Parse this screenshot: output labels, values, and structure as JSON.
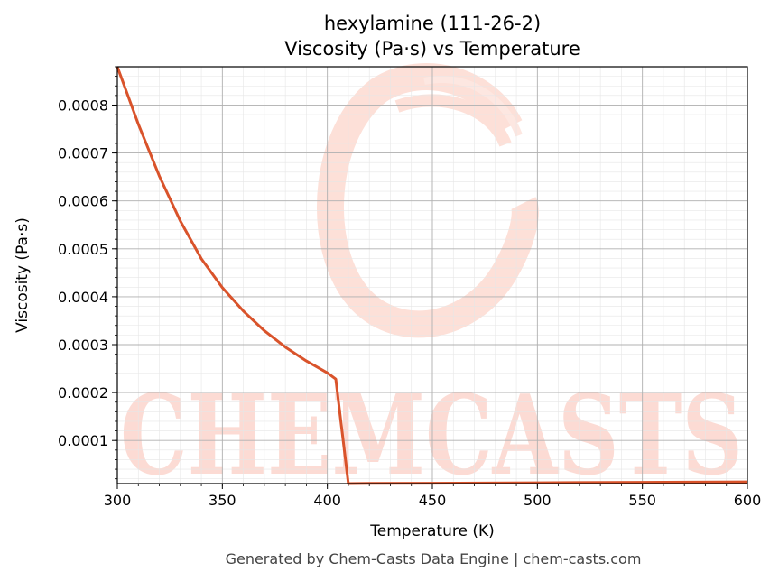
{
  "chart_data": {
    "type": "line",
    "title": "hexylamine (111-26-2)",
    "subtitle": "Viscosity (Pa·s) vs Temperature",
    "xlabel": "Temperature (K)",
    "ylabel": "Viscosity (Pa·s)",
    "xlim": [
      300,
      600
    ],
    "ylim": [
      1e-05,
      0.00088
    ],
    "x_ticks": [
      300,
      350,
      400,
      450,
      500,
      550,
      600
    ],
    "y_ticks": [
      0.0001,
      0.0002,
      0.0003,
      0.0004,
      0.0005,
      0.0006,
      0.0007,
      0.0008
    ],
    "x_tick_labels": [
      "300",
      "350",
      "400",
      "450",
      "500",
      "550",
      "600"
    ],
    "y_tick_labels": [
      "0.0001",
      "0.0002",
      "0.0003",
      "0.0004",
      "0.0005",
      "0.0006",
      "0.0007",
      "0.0008"
    ],
    "grid": true,
    "legend": "none",
    "series": [
      {
        "color": "#d9532b",
        "x": [
          300,
          310,
          320,
          330,
          340,
          350,
          360,
          370,
          380,
          390,
          400,
          404,
          410,
          420,
          450,
          500,
          550,
          600
        ],
        "y": [
          0.00088,
          0.00076,
          0.000652,
          0.000558,
          0.000479,
          0.000419,
          0.00037,
          0.000329,
          0.000295,
          0.000266,
          0.000241,
          0.000228,
          1e-05,
          1.03e-05,
          1.08e-05,
          1.17e-05,
          1.26e-05,
          1.35e-05
        ]
      }
    ]
  },
  "watermark": {
    "text": "CHEMCASTS",
    "color": "#fbd5cc"
  },
  "footer": "Generated by Chem-Casts Data Engine | chem-casts.com"
}
